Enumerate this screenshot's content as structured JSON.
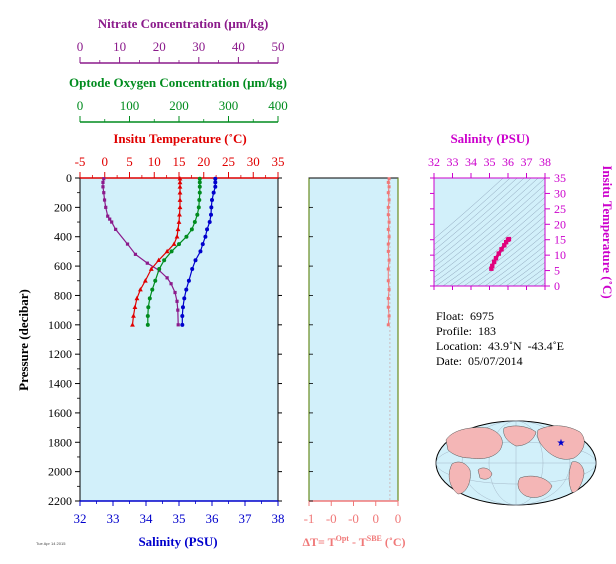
{
  "chart_data": [
    {
      "type": "line",
      "panel": "profile",
      "ylabel": "Pressure (decibar)",
      "ylim": [
        0,
        2200
      ],
      "yticks": [
        0,
        200,
        400,
        600,
        800,
        1000,
        1200,
        1400,
        1600,
        1800,
        2000,
        2200
      ],
      "y_inverted": true,
      "x_axes": [
        {
          "label": "Nitrate Concentration (μm/kg)",
          "range": [
            0,
            50
          ],
          "ticks": [
            "0",
            "10",
            "20",
            "30",
            "40",
            "50"
          ],
          "color": "#8b1a8b",
          "position": "top-1"
        },
        {
          "label": "Optode Oxygen Concentration (μm/kg)",
          "range": [
            0,
            400
          ],
          "ticks": [
            "0",
            "100",
            "200",
            "300",
            "400"
          ],
          "color": "#008c1e",
          "position": "top-2"
        },
        {
          "label": "Insitu Temperature (˚C)",
          "range": [
            -5,
            35
          ],
          "ticks": [
            "-5",
            "0",
            "5",
            "10",
            "15",
            "20",
            "25",
            "30",
            "35"
          ],
          "color": "#e00000",
          "position": "top-3"
        },
        {
          "label": "Salinity (PSU)",
          "range": [
            32,
            38
          ],
          "ticks": [
            "32",
            "33",
            "34",
            "35",
            "36",
            "37",
            "38"
          ],
          "color": "#0000cc",
          "position": "bottom"
        }
      ],
      "series": [
        {
          "name": "Nitrate",
          "axis": 0,
          "color": "#8b1a8b",
          "x": [
            6,
            5.8,
            5.8,
            6,
            6.2,
            6.5,
            7,
            7.5,
            8,
            9,
            12,
            14,
            17,
            20,
            22,
            23,
            24,
            24.5,
            24.7,
            24.8
          ],
          "y": [
            5,
            30,
            60,
            100,
            150,
            200,
            260,
            280,
            300,
            350,
            450,
            520,
            580,
            630,
            680,
            720,
            780,
            840,
            900,
            1000
          ]
        },
        {
          "name": "Oxygen",
          "axis": 1,
          "color": "#008c1e",
          "x": [
            242,
            242,
            242,
            242,
            241,
            240,
            237,
            232,
            226,
            215,
            200,
            185,
            170,
            160,
            152,
            146,
            141,
            138,
            137,
            137
          ],
          "y": [
            5,
            30,
            60,
            100,
            150,
            200,
            250,
            300,
            350,
            400,
            450,
            500,
            560,
            620,
            700,
            760,
            820,
            880,
            940,
            1000
          ]
        },
        {
          "name": "Temperature",
          "axis": 2,
          "color": "#e00000",
          "x": [
            15.2,
            15.2,
            15.2,
            15.2,
            15.2,
            15.2,
            15.1,
            15.0,
            14.8,
            14.6,
            14.0,
            12.6,
            10.9,
            9.4,
            8.2,
            7.2,
            6.5,
            6.1,
            5.8,
            5.6
          ],
          "y": [
            5,
            30,
            60,
            100,
            150,
            200,
            250,
            300,
            350,
            400,
            450,
            500,
            560,
            620,
            700,
            760,
            820,
            880,
            940,
            1000
          ]
        },
        {
          "name": "Salinity",
          "axis": 3,
          "color": "#0000cc",
          "x": [
            36.1,
            36.1,
            36.1,
            36.05,
            36.0,
            35.98,
            35.97,
            35.93,
            35.85,
            35.8,
            35.72,
            35.65,
            35.5,
            35.4,
            35.3,
            35.22,
            35.16,
            35.12,
            35.1,
            35.1
          ],
          "y": [
            5,
            30,
            60,
            100,
            150,
            200,
            250,
            300,
            350,
            400,
            450,
            500,
            560,
            620,
            700,
            760,
            820,
            880,
            940,
            1000
          ]
        }
      ]
    },
    {
      "type": "line",
      "panel": "delta-t",
      "xlabel": "ΔT= Tᴼᵖᵗ - Tˢᴮᴱ (˚C)",
      "xlabel_parts": {
        "prefix": "ΔT= T",
        "sup1": "Opt",
        "mid": " - T",
        "sup2": "SBE",
        "suffix": " (˚C)"
      },
      "xlim": [
        -1,
        0.1
      ],
      "xticks": [
        "-1",
        "-0",
        "-0",
        "0",
        "0"
      ],
      "ylim": [
        0,
        2200
      ],
      "series": [
        {
          "name": "",
          "color": "#f07878",
          "x": [
            -0.01,
            -0.02,
            -0.01,
            -0.02,
            -0.01,
            -0.02,
            -0.02,
            -0.01,
            -0.02,
            -0.01,
            -0.02,
            -0.02,
            -0.01,
            -0.02,
            -0.02,
            -0.01,
            -0.02,
            -0.02,
            -0.01,
            -0.02
          ],
          "y": [
            5,
            30,
            60,
            100,
            150,
            200,
            250,
            300,
            350,
            400,
            450,
            500,
            560,
            620,
            700,
            760,
            820,
            880,
            940,
            1000
          ]
        }
      ]
    },
    {
      "type": "scatter",
      "panel": "ts-diagram",
      "title": "Salinity (PSU)",
      "ylabel": "Insitu Temperature (˚C)",
      "xlim": [
        32,
        38
      ],
      "ylim": [
        0,
        35
      ],
      "xticks": [
        "32",
        "33",
        "34",
        "35",
        "36",
        "37",
        "38"
      ],
      "yticks": [
        "0",
        "5",
        "10",
        "15",
        "20",
        "25",
        "30",
        "35"
      ],
      "color": "#e0007c",
      "x": [
        35.1,
        35.15,
        35.25,
        35.35,
        35.5,
        35.65,
        35.8,
        35.9,
        36.0,
        36.05
      ],
      "y": [
        5.6,
        6.5,
        7.8,
        9.0,
        10.5,
        11.9,
        13.2,
        14.2,
        15.0,
        15.2
      ]
    }
  ],
  "float_info": {
    "float": "Float:  6975",
    "profile": "Profile:  183",
    "location": "Location:  43.9˚N  -43.4˚E",
    "date": "Date:  05/07/2014"
  },
  "footnote": "Tue Apr 14 2015"
}
